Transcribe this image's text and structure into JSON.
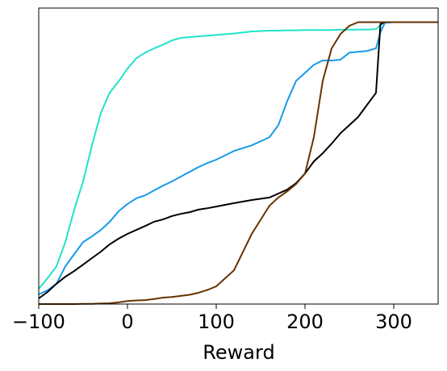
{
  "chart_data": {
    "type": "line",
    "x_label": "Reward",
    "x": [
      -100,
      -90,
      -80,
      -70,
      -60,
      -50,
      -40,
      -30,
      -20,
      -10,
      0,
      10,
      20,
      30,
      40,
      50,
      60,
      70,
      80,
      90,
      100,
      120,
      140,
      160,
      170,
      180,
      190,
      200,
      210,
      220,
      230,
      240,
      250,
      260,
      270,
      280,
      285,
      290,
      300,
      350
    ],
    "series": [
      {
        "color": "#1ee3c8",
        "values": [
          0.054,
          0.092,
          0.134,
          0.22,
          0.335,
          0.435,
          0.563,
          0.678,
          0.75,
          0.79,
          0.835,
          0.872,
          0.892,
          0.907,
          0.92,
          0.935,
          0.944,
          0.947,
          0.95,
          0.952,
          0.955,
          0.96,
          0.967,
          0.97,
          0.97,
          0.971,
          0.971,
          0.972,
          0.972,
          0.972,
          0.972,
          0.973,
          0.973,
          0.974,
          0.974,
          0.975,
          0.99,
          1.0,
          1.0,
          1.0
        ]
      },
      {
        "color": "#169bea",
        "values": [
          0.034,
          0.049,
          0.072,
          0.134,
          0.177,
          0.22,
          0.24,
          0.263,
          0.292,
          0.329,
          0.355,
          0.375,
          0.386,
          0.403,
          0.42,
          0.435,
          0.452,
          0.469,
          0.486,
          0.5,
          0.512,
          0.543,
          0.563,
          0.592,
          0.635,
          0.72,
          0.792,
          0.82,
          0.849,
          0.864,
          0.864,
          0.867,
          0.892,
          0.895,
          0.898,
          0.907,
          0.964,
          0.998,
          1.0,
          1.0
        ]
      },
      {
        "color": "#000000",
        "values": [
          0.02,
          0.043,
          0.072,
          0.097,
          0.117,
          0.14,
          0.163,
          0.186,
          0.212,
          0.232,
          0.249,
          0.263,
          0.277,
          0.292,
          0.3,
          0.312,
          0.32,
          0.326,
          0.335,
          0.34,
          0.346,
          0.358,
          0.369,
          0.378,
          0.392,
          0.406,
          0.429,
          0.463,
          0.506,
          0.535,
          0.569,
          0.606,
          0.635,
          0.664,
          0.707,
          0.749,
          0.993,
          1.0,
          1.0,
          1.0
        ]
      },
      {
        "color": "#663300",
        "values": [
          0.0,
          0.0,
          0.0,
          0.0,
          0.0,
          0.001,
          0.001,
          0.002,
          0.003,
          0.006,
          0.011,
          0.013,
          0.014,
          0.018,
          0.023,
          0.025,
          0.029,
          0.033,
          0.04,
          0.05,
          0.063,
          0.12,
          0.249,
          0.349,
          0.378,
          0.4,
          0.426,
          0.463,
          0.592,
          0.792,
          0.907,
          0.958,
          0.987,
          1.0,
          1.0,
          1.0,
          1.0,
          1.0,
          1.0,
          1.0
        ]
      }
    ],
    "xlim": [
      -100,
      350
    ],
    "ylim": [
      0,
      1.05
    ],
    "xticks": [
      {
        "value": -100,
        "label": "−100"
      },
      0,
      100,
      200,
      300
    ]
  }
}
